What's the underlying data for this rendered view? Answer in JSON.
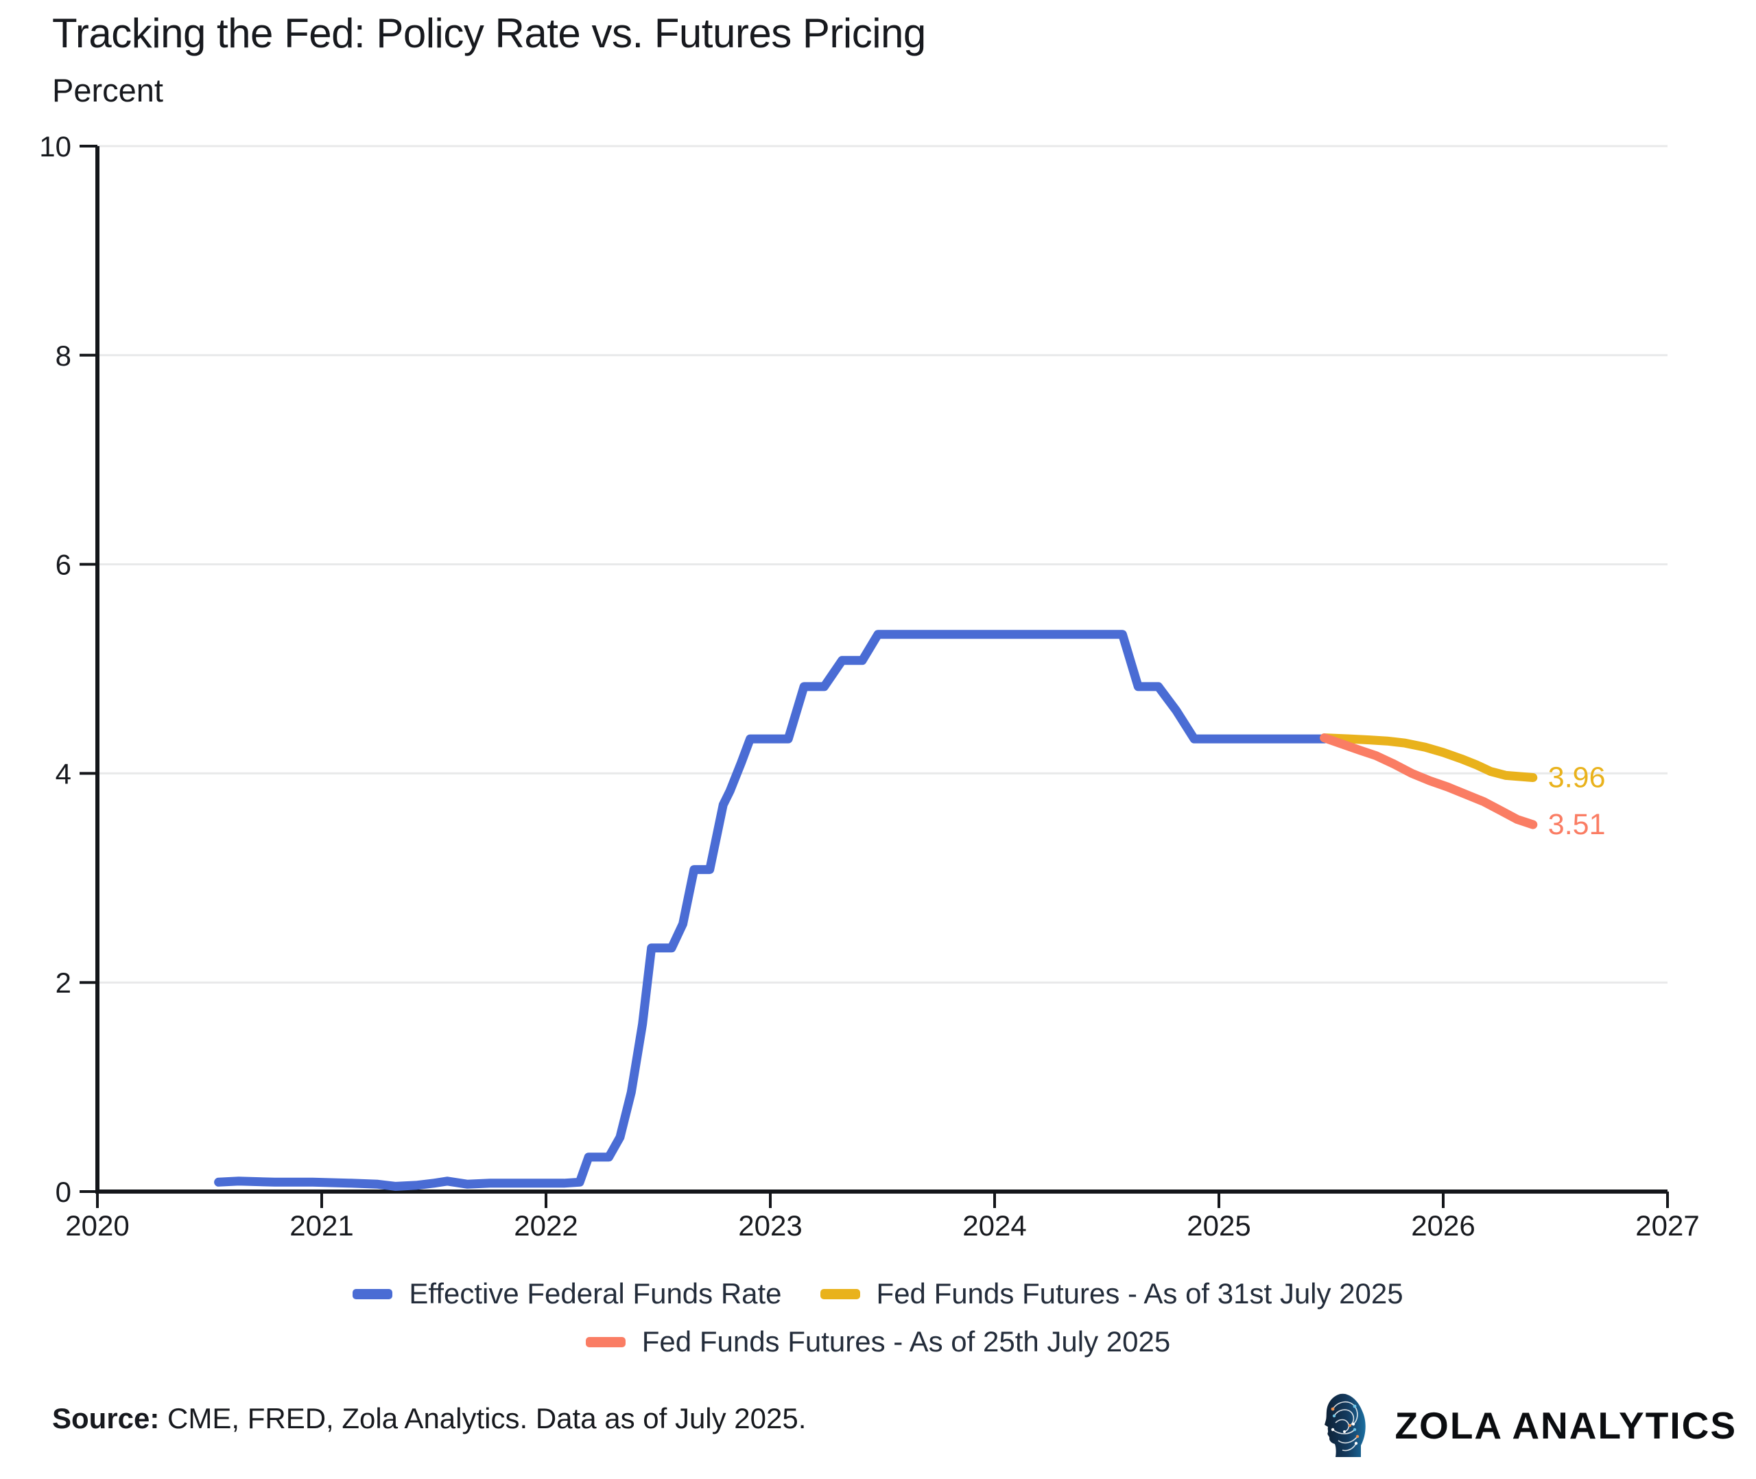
{
  "title": "Tracking the Fed: Policy Rate vs. Futures Pricing",
  "subtitle": "Percent",
  "source": {
    "label_bold": "Source:",
    "text": " CME, FRED, Zola Analytics. Data as of July 2025."
  },
  "brand": {
    "name": "ZOLA ANALYTICS"
  },
  "colors": {
    "effr_blue": "#4a6cd4",
    "futures_gold": "#e9b21c",
    "futures_salmon": "#fa7d64",
    "axis": "#14161a",
    "grid": "#e8e9ea",
    "text": "#17191e",
    "legend_text": "#232c3a"
  },
  "chart_data": {
    "type": "line",
    "title": "Tracking the Fed: Policy Rate vs. Futures Pricing",
    "xlabel": "",
    "ylabel": "Percent",
    "xlim": [
      2020,
      2027
    ],
    "ylim": [
      0,
      10
    ],
    "x_ticks": [
      2020,
      2021,
      2022,
      2023,
      2024,
      2025,
      2026,
      2027
    ],
    "y_ticks": [
      0,
      2,
      4,
      6,
      8,
      10
    ],
    "grid": "horizontal",
    "legend_position": "bottom",
    "series": [
      {
        "name": "Effective Federal Funds Rate",
        "color": "#4a6cd4",
        "end_label": null,
        "points": [
          [
            2020.54,
            0.09
          ],
          [
            2020.63,
            0.1
          ],
          [
            2020.79,
            0.09
          ],
          [
            2020.96,
            0.09
          ],
          [
            2021.13,
            0.08
          ],
          [
            2021.25,
            0.07
          ],
          [
            2021.33,
            0.05
          ],
          [
            2021.42,
            0.06
          ],
          [
            2021.5,
            0.08
          ],
          [
            2021.56,
            0.1
          ],
          [
            2021.65,
            0.07
          ],
          [
            2021.75,
            0.08
          ],
          [
            2021.92,
            0.08
          ],
          [
            2022.08,
            0.08
          ],
          [
            2022.15,
            0.09
          ],
          [
            2022.19,
            0.33
          ],
          [
            2022.28,
            0.33
          ],
          [
            2022.33,
            0.52
          ],
          [
            2022.38,
            0.95
          ],
          [
            2022.43,
            1.6
          ],
          [
            2022.47,
            2.33
          ],
          [
            2022.56,
            2.33
          ],
          [
            2022.61,
            2.56
          ],
          [
            2022.66,
            3.08
          ],
          [
            2022.73,
            3.08
          ],
          [
            2022.79,
            3.7
          ],
          [
            2022.82,
            3.83
          ],
          [
            2022.87,
            4.1
          ],
          [
            2022.91,
            4.33
          ],
          [
            2023.08,
            4.33
          ],
          [
            2023.15,
            4.83
          ],
          [
            2023.24,
            4.83
          ],
          [
            2023.32,
            5.08
          ],
          [
            2023.41,
            5.08
          ],
          [
            2023.48,
            5.33
          ],
          [
            2024.57,
            5.33
          ],
          [
            2024.64,
            4.83
          ],
          [
            2024.73,
            4.83
          ],
          [
            2024.81,
            4.6
          ],
          [
            2024.89,
            4.33
          ],
          [
            2025.47,
            4.33
          ]
        ]
      },
      {
        "name": "Fed Funds Futures - As of 31st July 2025",
        "color": "#e9b21c",
        "end_label": "3.96",
        "points": [
          [
            2025.47,
            4.34
          ],
          [
            2025.58,
            4.33
          ],
          [
            2025.67,
            4.32
          ],
          [
            2025.75,
            4.31
          ],
          [
            2025.83,
            4.29
          ],
          [
            2025.92,
            4.25
          ],
          [
            2026.0,
            4.2
          ],
          [
            2026.08,
            4.14
          ],
          [
            2026.15,
            4.08
          ],
          [
            2026.21,
            4.02
          ],
          [
            2026.28,
            3.98
          ],
          [
            2026.4,
            3.96
          ]
        ]
      },
      {
        "name": "Fed Funds Futures - As of 25th July 2025",
        "color": "#fa7d64",
        "end_label": "3.51",
        "points": [
          [
            2025.47,
            4.34
          ],
          [
            2025.55,
            4.28
          ],
          [
            2025.63,
            4.22
          ],
          [
            2025.7,
            4.17
          ],
          [
            2025.78,
            4.09
          ],
          [
            2025.86,
            4.0
          ],
          [
            2025.94,
            3.93
          ],
          [
            2026.02,
            3.87
          ],
          [
            2026.1,
            3.8
          ],
          [
            2026.18,
            3.73
          ],
          [
            2026.26,
            3.64
          ],
          [
            2026.33,
            3.56
          ],
          [
            2026.4,
            3.51
          ]
        ]
      }
    ]
  }
}
